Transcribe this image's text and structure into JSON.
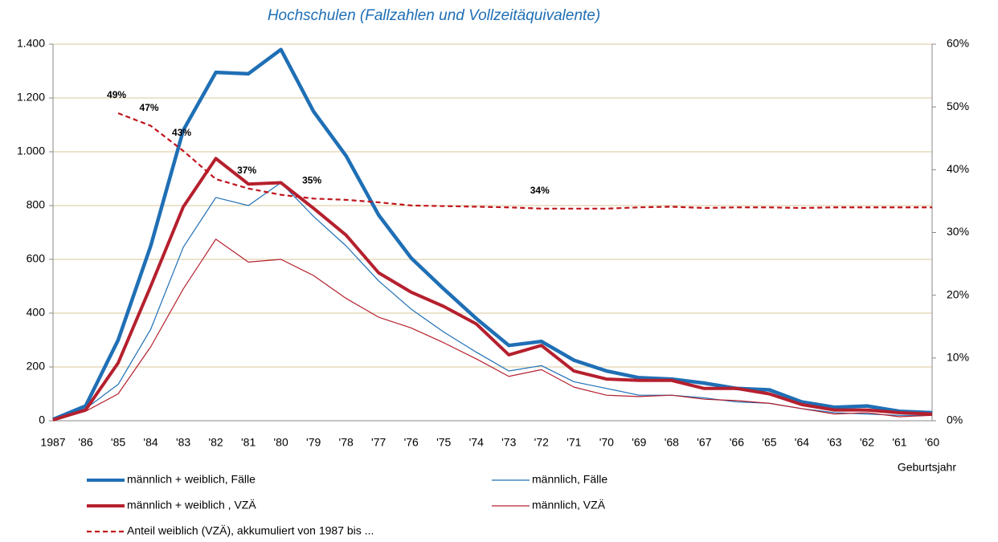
{
  "chart_data": {
    "type": "line",
    "title": "Hochschulen (Fallzahlen und Vollzeitäquivalente)",
    "x_label": "Geburtsjahr",
    "categories": [
      "1987",
      "'86",
      "'85",
      "'84",
      "'83",
      "'82",
      "'81",
      "'80",
      "'79",
      "'78",
      "'77",
      "'76",
      "'75",
      "'74",
      "'73",
      "'72",
      "'71",
      "'70",
      "'69",
      "'68",
      "'67",
      "'66",
      "'65",
      "'64",
      "'63",
      "'62",
      "'61",
      "'60"
    ],
    "ylim": [
      0,
      1400
    ],
    "yticks": [
      0,
      200,
      400,
      600,
      800,
      {
        "value": 1000,
        "label": "1.000"
      },
      {
        "value": 1200,
        "label": "1.200"
      },
      {
        "value": 1400,
        "label": "1.400"
      }
    ],
    "y2lim": [
      0,
      60
    ],
    "y2ticks": [
      {
        "value": 0,
        "label": "0%"
      },
      {
        "value": 10,
        "label": "10%"
      },
      {
        "value": 20,
        "label": "20%"
      },
      {
        "value": 30,
        "label": "30%"
      },
      {
        "value": 40,
        "label": "40%"
      },
      {
        "value": 50,
        "label": "50%"
      },
      {
        "value": 60,
        "label": "60%"
      }
    ],
    "grid": true,
    "series": [
      {
        "name": "männlich + weiblich, Fälle",
        "color": "#1f6fb5",
        "line_width": 4.5,
        "dash": false,
        "values": [
          5,
          55,
          300,
          650,
          1080,
          1295,
          1290,
          1380,
          1150,
          985,
          765,
          605,
          490,
          380,
          280,
          295,
          225,
          185,
          160,
          155,
          140,
          120,
          115,
          70,
          50,
          55,
          35,
          30
        ]
      },
      {
        "name": "männlich, Fälle",
        "color": "#1f6fb5",
        "line_width": 1.2,
        "dash": false,
        "values": [
          5,
          45,
          135,
          340,
          645,
          830,
          800,
          885,
          760,
          650,
          520,
          415,
          330,
          255,
          185,
          205,
          145,
          120,
          95,
          95,
          85,
          70,
          65,
          45,
          30,
          25,
          20,
          20
        ]
      },
      {
        "name": "männlich + weiblich , VZÄ",
        "color": "#b5202e",
        "line_width": 4,
        "dash": false,
        "values": [
          3,
          40,
          215,
          500,
          795,
          975,
          880,
          885,
          790,
          690,
          550,
          478,
          425,
          360,
          245,
          280,
          185,
          155,
          150,
          150,
          120,
          120,
          100,
          60,
          40,
          40,
          30,
          25
        ]
      },
      {
        "name": "männlich, VZÄ",
        "color": "#b5202e",
        "line_width": 1.2,
        "dash": false,
        "values": [
          2,
          35,
          100,
          275,
          490,
          675,
          590,
          600,
          540,
          455,
          385,
          345,
          290,
          230,
          165,
          190,
          125,
          95,
          90,
          95,
          80,
          75,
          65,
          45,
          25,
          30,
          15,
          20
        ]
      },
      {
        "name": "Anteil weiblich (VZÄ), akkumuliert von 1987 bis ...",
        "color": "#c0141c",
        "line_width": 2.2,
        "dash": true,
        "axis": "y2",
        "values": [
          null,
          null,
          49,
          47,
          43,
          38.5,
          37,
          36,
          35.4,
          35.2,
          34.8,
          34.3,
          34.2,
          34.1,
          34,
          33.8,
          33.8,
          33.8,
          34,
          34.1,
          33.9,
          34,
          34,
          33.9,
          34,
          34,
          34,
          34
        ],
        "value_labels": [
          null,
          null,
          "49%",
          "47%",
          "43%",
          null,
          "37%",
          null,
          "35%",
          null,
          null,
          null,
          null,
          null,
          null,
          "34%",
          null,
          null,
          null,
          null,
          null,
          null,
          null,
          null,
          null,
          null,
          null,
          null
        ]
      }
    ]
  }
}
